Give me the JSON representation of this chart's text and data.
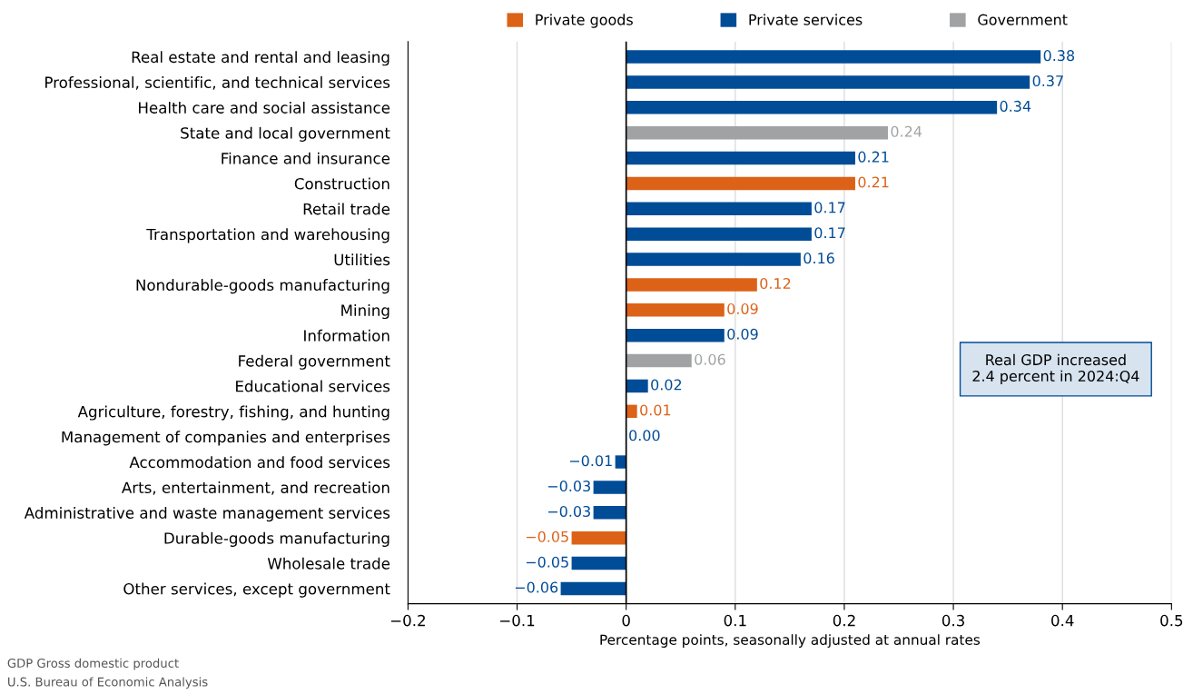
{
  "chart_data": {
    "type": "bar",
    "orientation": "horizontal",
    "stacked": true,
    "categories": [
      "Real estate and rental and leasing",
      "Professional, scientific, and technical services",
      "Health care and social assistance",
      "State and local government",
      "Finance and insurance",
      "Construction",
      "Retail trade",
      "Transportation and warehousing",
      "Utilities",
      "Nondurable-goods manufacturing",
      "Mining",
      "Information",
      "Federal government",
      "Educational services",
      "Agriculture, forestry, fishing, and hunting",
      "Management of companies and enterprises",
      "Accommodation and food services",
      "Arts, entertainment, and recreation",
      "Administrative and waste management services",
      "Durable-goods manufacturing",
      "Wholesale trade",
      "Other services, except government"
    ],
    "series": [
      {
        "name": "Private goods",
        "color": "#dc6218",
        "values": [
          null,
          null,
          null,
          null,
          null,
          0.21,
          null,
          null,
          null,
          0.12,
          0.09,
          null,
          null,
          null,
          0.01,
          null,
          null,
          null,
          null,
          -0.05,
          null,
          null
        ],
        "value_labels": [
          null,
          null,
          null,
          null,
          null,
          "0.21",
          null,
          null,
          null,
          "0.12",
          "0.09",
          null,
          null,
          null,
          "0.01",
          null,
          null,
          null,
          null,
          "−0.05",
          null,
          null
        ]
      },
      {
        "name": "Private services",
        "color": "#004c97",
        "values": [
          0.38,
          0.37,
          0.34,
          null,
          0.21,
          null,
          0.17,
          0.17,
          0.16,
          null,
          null,
          0.09,
          null,
          0.02,
          null,
          0.0,
          -0.01,
          -0.03,
          -0.03,
          null,
          -0.05,
          -0.06
        ],
        "value_labels": [
          "0.38",
          "0.37",
          "0.34",
          null,
          "0.21",
          null,
          "0.17",
          "0.17",
          "0.16",
          null,
          null,
          "0.09",
          null,
          "0.02",
          null,
          "0.00",
          "−0.01",
          "−0.03",
          "−0.03",
          null,
          "−0.05",
          "−0.06"
        ]
      },
      {
        "name": "Government",
        "color": "#a0a2a3",
        "values": [
          null,
          null,
          null,
          0.24,
          null,
          null,
          null,
          null,
          null,
          null,
          null,
          null,
          0.06,
          null,
          null,
          null,
          null,
          null,
          null,
          null,
          null,
          null
        ],
        "value_labels": [
          null,
          null,
          null,
          "0.24",
          null,
          null,
          null,
          null,
          null,
          null,
          null,
          null,
          "0.06",
          null,
          null,
          null,
          null,
          null,
          null,
          null,
          null,
          null
        ]
      }
    ],
    "xlim": [
      -0.2,
      0.5
    ],
    "xticks": [
      {
        "value": -0.2,
        "label": "−0.2"
      },
      {
        "value": -0.1,
        "label": "−0.1"
      },
      0,
      0.1,
      0.2,
      0.3,
      0.4,
      0.5
    ],
    "xlabel": "Percentage points, seasonally adjusted at annual rates",
    "grid": "x",
    "legend": "top",
    "ref_lines": [
      {
        "axis": "x",
        "value": 0,
        "color": "#000000"
      }
    ],
    "annotations": [
      "Real GDP increased\n2.4 percent in 2024:Q4",
      "GDP Gross domestic product",
      "U.S. Bureau of Economic Analysis"
    ]
  }
}
